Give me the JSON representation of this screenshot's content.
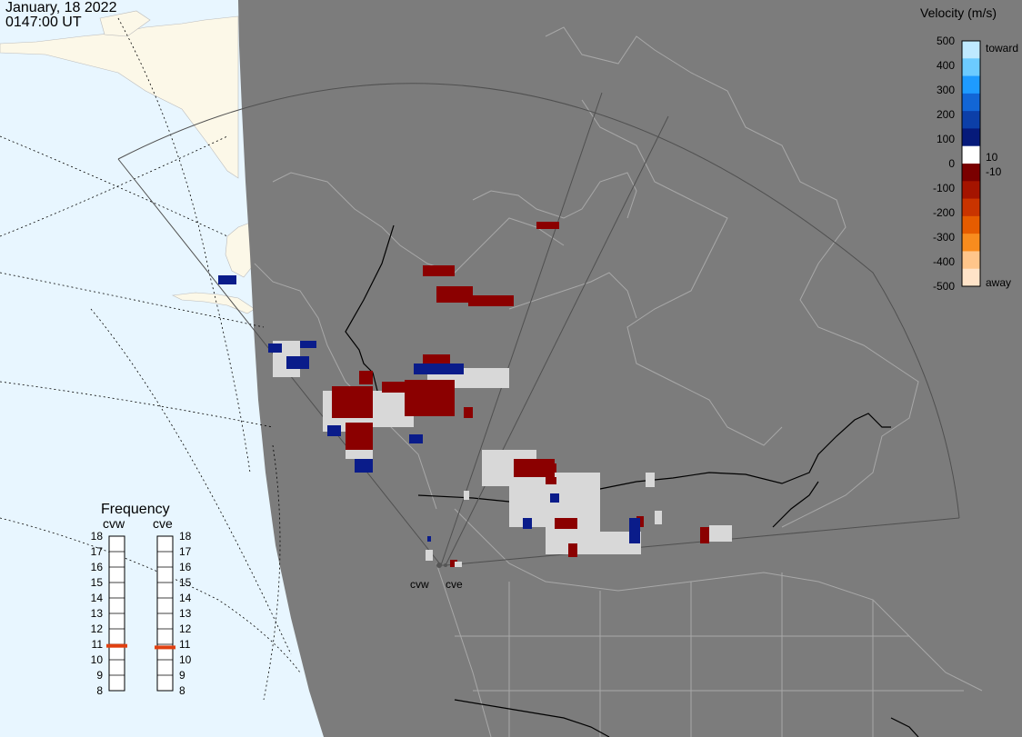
{
  "header": {
    "date": "January, 18 2022",
    "time": "0147:00 UT"
  },
  "velocity_legend": {
    "title": "Velocity (m/s)",
    "ticks": [
      "500",
      "400",
      "300",
      "200",
      "100",
      "0",
      "-100",
      "-200",
      "-300",
      "-400",
      "-500"
    ],
    "toward_label": "toward",
    "away_label": "away",
    "mid_pos_label": "10",
    "mid_neg_label": "-10",
    "colors": [
      "#bfe9ff",
      "#6ccbff",
      "#1e9bff",
      "#1266d6",
      "#0c3fa8",
      "#061a7a",
      "#ffffff",
      "#7a0000",
      "#a41400",
      "#c93400",
      "#e65c00",
      "#f88c1e",
      "#ffc58a",
      "#ffe3c8"
    ]
  },
  "frequency_panel": {
    "title": "Frequency",
    "radars": [
      {
        "name": "cvw",
        "level": 10.9
      },
      {
        "name": "cve",
        "level": 10.8
      }
    ],
    "scale": [
      "18",
      "17",
      "16",
      "15",
      "14",
      "13",
      "12",
      "11",
      "10",
      "9",
      "8"
    ],
    "marker_color": "#e04010"
  },
  "sites": [
    {
      "code": "cvw"
    },
    {
      "code": "cve"
    }
  ],
  "map_colors": {
    "night": "#7c7c7c",
    "day_ocean": "#e8f6ff",
    "day_land": "#fcf8e8",
    "scatter_ground": "#d8d8d8",
    "away": "#8b0000",
    "toward": "#0a1c8a"
  }
}
